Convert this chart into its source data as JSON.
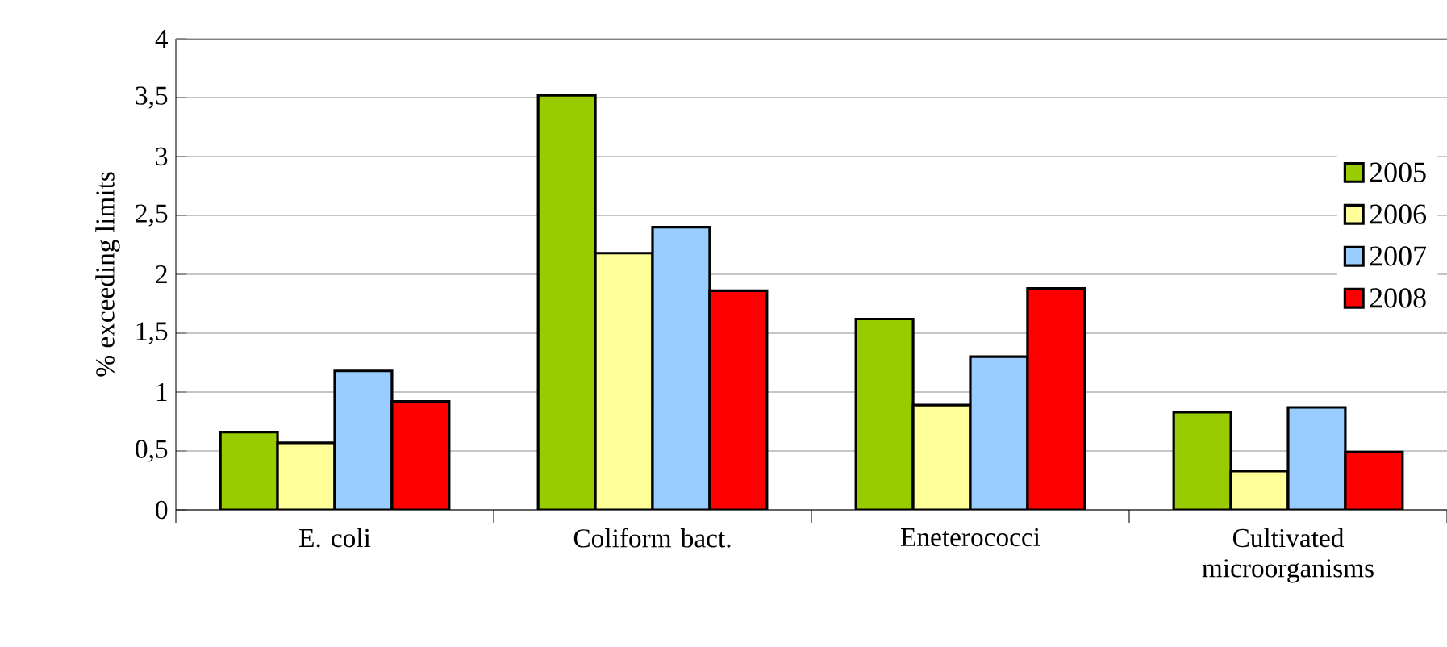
{
  "chart_data": {
    "type": "bar",
    "ylabel": "% exceeding limits",
    "categories": [
      "E. coli",
      "Coliform bact.",
      "Eneterococci",
      "Cultivated microorganisms"
    ],
    "series": [
      {
        "name": "2005",
        "color": "#99cc00",
        "values": [
          0.66,
          3.52,
          1.62,
          0.83
        ]
      },
      {
        "name": "2006",
        "color": "#ffff99",
        "values": [
          0.57,
          2.18,
          0.89,
          0.33
        ]
      },
      {
        "name": "2007",
        "color": "#99ccff",
        "values": [
          1.18,
          2.4,
          1.3,
          0.87
        ]
      },
      {
        "name": "2008",
        "color": "#ff0000",
        "values": [
          0.92,
          1.86,
          1.88,
          0.49
        ]
      }
    ],
    "ylim": [
      0,
      4
    ],
    "yticks": [
      0,
      {
        "value": 0.5,
        "label": "0,5"
      },
      1,
      {
        "value": 1.5,
        "label": "1,5"
      },
      2,
      {
        "value": 2.5,
        "label": "2,5"
      },
      3,
      {
        "value": 3.5,
        "label": "3,5"
      },
      4
    ],
    "grid": "y",
    "legend": "right"
  }
}
